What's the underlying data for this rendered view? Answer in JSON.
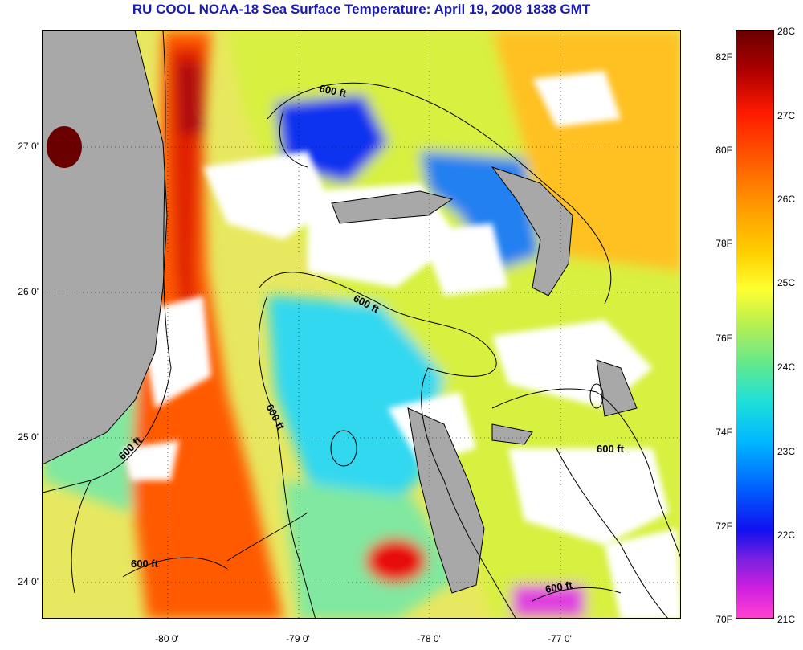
{
  "title": "RU COOL  NOAA-18  Sea Surface Temperature:  April 19, 2008 1838 GMT",
  "y_ticks": [
    "27 0'",
    "26 0'",
    "25 0'",
    "24 0'"
  ],
  "x_ticks": [
    "-80 0'",
    "-79 0'",
    "-78 0'",
    "-77 0'"
  ],
  "colorbar_fahrenheit": [
    "82F",
    "80F",
    "78F",
    "76F",
    "74F",
    "72F",
    "70F"
  ],
  "colorbar_celsius": [
    "28C",
    "27C",
    "26C",
    "25C",
    "24C",
    "23C",
    "22C",
    "21C"
  ],
  "contour_labels": [
    "600 ft",
    "600 ft",
    "600 ft",
    "600 ft",
    "600 ft",
    "600 ft",
    "600 ft"
  ],
  "colors": {
    "title": "#1a1ab4",
    "land": "#a8a8a8",
    "no_data": "#ffffff"
  }
}
